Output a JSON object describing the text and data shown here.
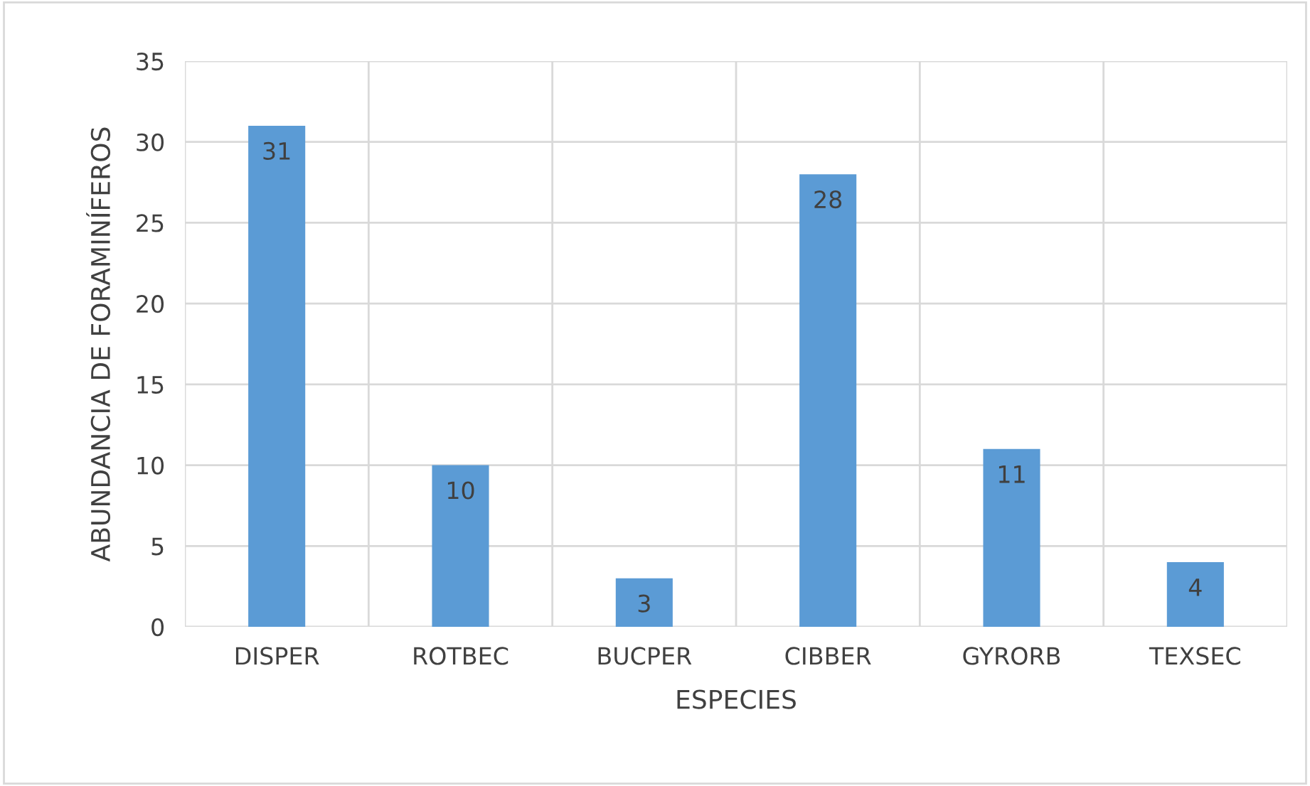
{
  "chart_data": {
    "type": "bar",
    "xlabel": "ESPECIES",
    "ylabel": "ABUNDANCIA DE FORAMINÍFEROS",
    "categories": [
      "DISPER",
      "ROTBEC",
      "BUCPER",
      "CIBBER",
      "GYRORB",
      "TEXSEC"
    ],
    "values": [
      31,
      10,
      3,
      28,
      11,
      4
    ],
    "color": "#5b9bd5",
    "ylim": [
      0,
      35
    ],
    "yticks": [
      0,
      5,
      10,
      15,
      20,
      25,
      30,
      35
    ],
    "grid": true,
    "data_labels": true
  }
}
